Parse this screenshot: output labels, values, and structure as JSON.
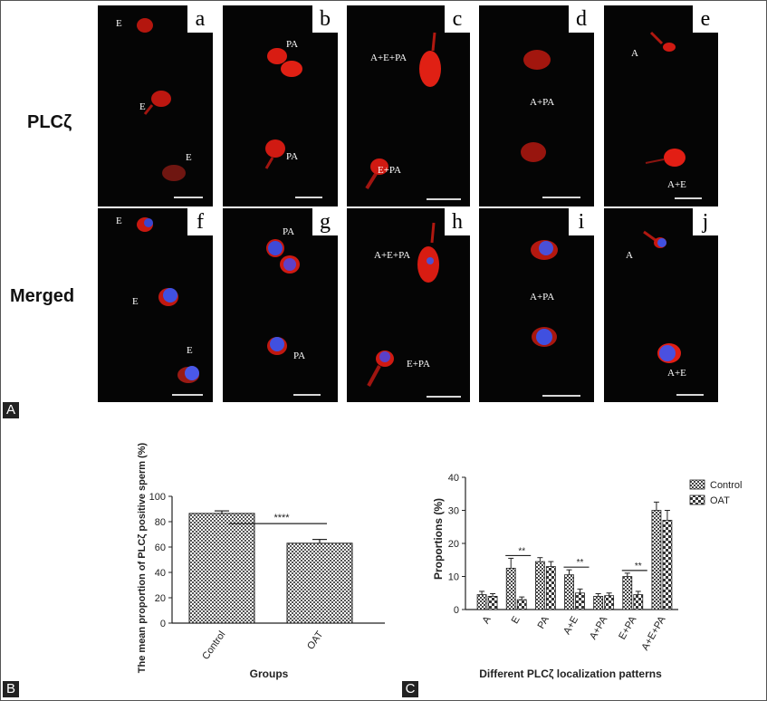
{
  "panel_a": {
    "tag": "A",
    "row_labels": [
      "PLCζ",
      "Merged"
    ],
    "tiles": [
      {
        "letter": "a",
        "labels": [
          "E",
          "E",
          "E"
        ]
      },
      {
        "letter": "b",
        "labels": [
          "PA",
          "PA"
        ]
      },
      {
        "letter": "c",
        "labels": [
          "A+E+PA",
          "E+PA"
        ]
      },
      {
        "letter": "d",
        "labels": [
          "A+PA"
        ]
      },
      {
        "letter": "e",
        "labels": [
          "A",
          "A+E"
        ]
      },
      {
        "letter": "f",
        "labels": [
          "E",
          "E",
          "E"
        ]
      },
      {
        "letter": "g",
        "labels": [
          "PA",
          "PA"
        ]
      },
      {
        "letter": "h",
        "labels": [
          "A+E+PA",
          "E+PA"
        ]
      },
      {
        "letter": "i",
        "labels": [
          "A+PA"
        ]
      },
      {
        "letter": "j",
        "labels": [
          "A",
          "A+E"
        ]
      }
    ]
  },
  "panel_b": {
    "tag": "B"
  },
  "panel_c": {
    "tag": "C"
  },
  "chart_data": [
    {
      "type": "bar",
      "title": "",
      "xlabel": "Groups",
      "ylabel": "The mean proportion of PLCζ positive sperm (%)",
      "ylim": [
        0,
        100
      ],
      "yticks": [
        0,
        20,
        40,
        60,
        80,
        100
      ],
      "categories": [
        "Control",
        "OAT"
      ],
      "values": [
        86.5,
        63
      ],
      "errors": [
        2,
        3
      ],
      "significance": "****",
      "fill_colors": [
        "#707070",
        "#707070"
      ]
    },
    {
      "type": "bar",
      "title": "",
      "xlabel": "Different PLCζ localization patterns",
      "ylabel": "Proportions (%)",
      "ylim": [
        0,
        40
      ],
      "yticks": [
        0,
        10,
        20,
        30,
        40
      ],
      "categories": [
        "A",
        "E",
        "PA",
        "A+E",
        "A+PA",
        "E+PA",
        "A+E+PA"
      ],
      "series": [
        {
          "name": "Control",
          "values": [
            4.5,
            12.5,
            14.5,
            10.5,
            4,
            10,
            30
          ],
          "errors": [
            1,
            3,
            1.2,
            1.5,
            0.8,
            1,
            2.5
          ]
        },
        {
          "name": "OAT",
          "values": [
            4,
            3,
            13,
            5,
            4.2,
            4.5,
            27
          ],
          "errors": [
            0.8,
            0.8,
            1.5,
            1.2,
            0.8,
            1,
            3
          ]
        }
      ],
      "significance": [
        {
          "category": "E",
          "label": "**"
        },
        {
          "category": "A+E",
          "label": "**"
        },
        {
          "category": "E+PA",
          "label": "**"
        }
      ],
      "legend_position": "top-right"
    }
  ]
}
